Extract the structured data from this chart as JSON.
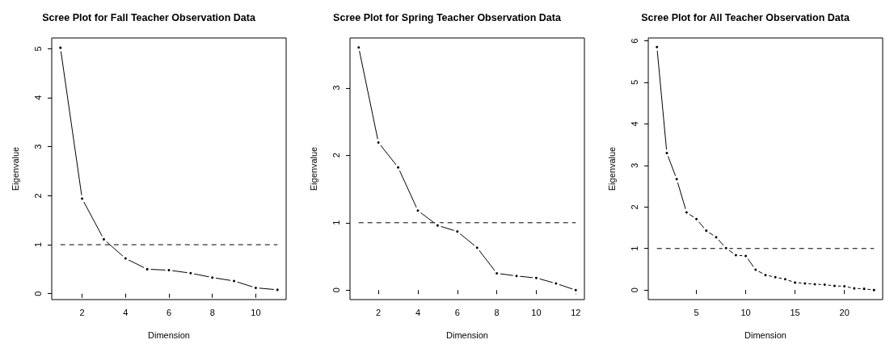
{
  "chart_data": [
    {
      "type": "line",
      "title": "Scree Plot for Fall Teacher Observation Data",
      "xlabel": "Dimension",
      "ylabel": "Eigenvalue",
      "color": "#000000",
      "marker": "circle",
      "x": [
        1,
        2,
        3,
        4,
        5,
        6,
        7,
        8,
        9,
        10,
        11
      ],
      "values": [
        5.02,
        1.94,
        1.11,
        0.72,
        0.5,
        0.48,
        0.42,
        0.33,
        0.26,
        0.12,
        0.08
      ],
      "xlim": [
        0.6,
        11.4
      ],
      "ylim": [
        -0.12,
        5.22
      ],
      "xticks": [
        2,
        4,
        6,
        8,
        10
      ],
      "yticks": [
        0,
        1,
        2,
        3,
        4,
        5
      ],
      "ref_lines": [
        {
          "axis": "y",
          "value": 1,
          "line_style": "dashed"
        }
      ]
    },
    {
      "type": "line",
      "title": "Scree Plot for Spring Teacher Observation Data",
      "xlabel": "Dimension",
      "ylabel": "Eigenvalue",
      "color": "#000000",
      "marker": "circle",
      "x": [
        1,
        2,
        3,
        4,
        5,
        6,
        7,
        8,
        9,
        10,
        11,
        12
      ],
      "values": [
        3.6,
        2.19,
        1.82,
        1.18,
        0.96,
        0.87,
        0.63,
        0.25,
        0.21,
        0.18,
        0.1,
        0.0
      ],
      "xlim": [
        0.56,
        12.44
      ],
      "ylim": [
        -0.14,
        3.74
      ],
      "xticks": [
        2,
        4,
        6,
        8,
        10,
        12
      ],
      "yticks": [
        0,
        1,
        2,
        3
      ],
      "ref_lines": [
        {
          "axis": "y",
          "value": 1,
          "line_style": "dashed"
        }
      ]
    },
    {
      "type": "line",
      "title": "Scree Plot for All Teacher Observation Data",
      "xlabel": "Dimension",
      "ylabel": "Eigenvalue",
      "color": "#000000",
      "marker": "circle",
      "x": [
        1,
        2,
        3,
        4,
        5,
        6,
        7,
        8,
        9,
        10,
        11,
        12,
        13,
        14,
        15,
        16,
        17,
        18,
        19,
        20,
        21,
        22,
        23
      ],
      "values": [
        5.85,
        3.3,
        2.67,
        1.87,
        1.71,
        1.43,
        1.27,
        1.01,
        0.84,
        0.82,
        0.49,
        0.36,
        0.31,
        0.26,
        0.18,
        0.16,
        0.14,
        0.13,
        0.1,
        0.09,
        0.04,
        0.03,
        0.0
      ],
      "xlim": [
        0.12,
        23.88
      ],
      "ylim": [
        -0.23,
        6.07
      ],
      "xticks": [
        5,
        10,
        15,
        20
      ],
      "yticks": [
        0,
        1,
        2,
        3,
        4,
        5,
        6
      ],
      "ref_lines": [
        {
          "axis": "y",
          "value": 1,
          "line_style": "dashed"
        }
      ]
    }
  ]
}
